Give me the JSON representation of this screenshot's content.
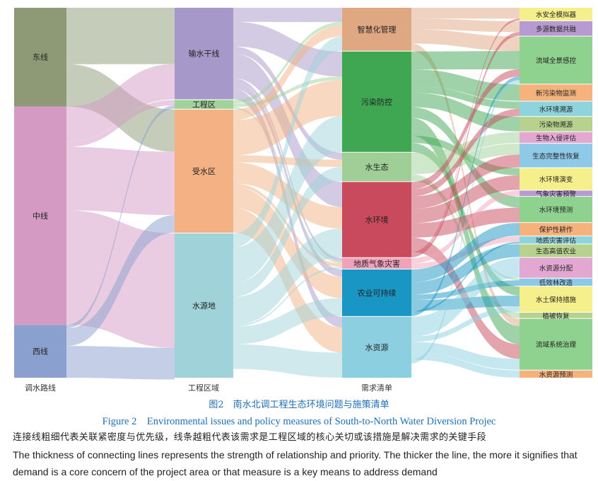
{
  "figure": {
    "caption_zh": "图2　南水北调工程生态环境问题与施策清单",
    "caption_en": "Figure 2　Environmental issues and policy measures of South-to-North Water Diversion Projec",
    "note_zh": "连接线粗细代表关联紧密度与优先级，线条越粗代表该需求是工程区域的核心关切或该措施是解决需求的关键手段",
    "note_en": "The thickness of connecting lines represents the strength of relationship and priority. The thicker the line, the more it signifies that demand is a core concern of the project area or that measure is a key means to address demand"
  },
  "axes": {
    "col1": "调水路线",
    "col2": "工程区域",
    "col3": "需求清单"
  },
  "colors": {
    "east": "#8e9a76",
    "middle": "#d49ac4",
    "west": "#8aa0cf",
    "trunk": "#a698c8",
    "eng": "#9fd39b",
    "recv": "#f4b183",
    "source": "#9fd3d9",
    "smart": "#e0a882",
    "pollution": "#3fa652",
    "ecology": "#9fcf96",
    "waterenv": "#c94a5c",
    "hazard": "#f0a3b8",
    "agri": "#1996c4",
    "resources": "#8ccfe0"
  },
  "nodes": {
    "col1": [
      {
        "id": "east",
        "label": "东线",
        "value": 28
      },
      {
        "id": "middle",
        "label": "中线",
        "value": 62
      },
      {
        "id": "west",
        "label": "西线",
        "value": 15
      }
    ],
    "col2": [
      {
        "id": "trunk",
        "label": "输水干线",
        "value": 26
      },
      {
        "id": "eng",
        "label": "工程区",
        "value": 2.5
      },
      {
        "id": "recv",
        "label": "受水区",
        "value": 35
      },
      {
        "id": "source",
        "label": "水源地",
        "value": 41
      }
    ],
    "col3": [
      {
        "id": "smart",
        "label": "智慧化管理",
        "value": 12
      },
      {
        "id": "pollution",
        "label": "污染防控",
        "value": 28
      },
      {
        "id": "ecology",
        "label": "水生态",
        "value": 8
      },
      {
        "id": "waterenv",
        "label": "水环境",
        "value": 21
      },
      {
        "id": "hazard",
        "label": "地质气象灾害",
        "value": 3
      },
      {
        "id": "agri",
        "label": "农业可持续",
        "value": 13
      },
      {
        "id": "resources",
        "label": "水资源",
        "value": 17
      }
    ],
    "col4": [
      {
        "id": "m1",
        "label": "水安全模拟器",
        "value": 3.5
      },
      {
        "id": "m2",
        "label": "多源数据共融",
        "value": 4
      },
      {
        "id": "m3",
        "label": "流域全景感控",
        "value": 13
      },
      {
        "id": "m4",
        "label": "新污染物监测",
        "value": 4.5
      },
      {
        "id": "m5",
        "label": "水环境溯源",
        "value": 4
      },
      {
        "id": "m6",
        "label": "污染物溯源",
        "value": 4
      },
      {
        "id": "m7",
        "label": "生物入侵评估",
        "value": 3
      },
      {
        "id": "m8",
        "label": "生态完整性恢复",
        "value": 6.5
      },
      {
        "id": "m9",
        "label": "水环境演变",
        "value": 6
      },
      {
        "id": "m10",
        "label": "气象灾害预警",
        "value": 1.5
      },
      {
        "id": "m11",
        "label": "水环境预测",
        "value": 7
      },
      {
        "id": "m12",
        "label": "保护性耕作",
        "value": 3.5
      },
      {
        "id": "m13",
        "label": "地质灾害评估",
        "value": 2
      },
      {
        "id": "m14",
        "label": "生态高值农业",
        "value": 3.5
      },
      {
        "id": "m15",
        "label": "水资源分配",
        "value": 5.5
      },
      {
        "id": "m16",
        "label": "低效林改造",
        "value": 2
      },
      {
        "id": "m17",
        "label": "水土保持措施",
        "value": 7
      },
      {
        "id": "m18",
        "label": "植被恢复",
        "value": 1.5
      },
      {
        "id": "m19",
        "label": "流域系统治理",
        "value": 14
      },
      {
        "id": "m20",
        "label": "水资源预测",
        "value": 2
      }
    ]
  },
  "links": {
    "col1_col2": [
      {
        "s": "east",
        "t": "trunk",
        "v": 16
      },
      {
        "s": "east",
        "t": "recv",
        "v": 12
      },
      {
        "s": "middle",
        "t": "trunk",
        "v": 10
      },
      {
        "s": "middle",
        "t": "eng",
        "v": 1.5
      },
      {
        "s": "middle",
        "t": "recv",
        "v": 18
      },
      {
        "s": "middle",
        "t": "source",
        "v": 32.5
      },
      {
        "s": "west",
        "t": "eng",
        "v": 1
      },
      {
        "s": "west",
        "t": "recv",
        "v": 5
      },
      {
        "s": "west",
        "t": "source",
        "v": 9
      }
    ],
    "col2_col3": [
      {
        "s": "trunk",
        "t": "smart",
        "v": 4
      },
      {
        "s": "trunk",
        "t": "pollution",
        "v": 7
      },
      {
        "s": "trunk",
        "t": "ecology",
        "v": 2
      },
      {
        "s": "trunk",
        "t": "waterenv",
        "v": 7
      },
      {
        "s": "trunk",
        "t": "hazard",
        "v": 1
      },
      {
        "s": "trunk",
        "t": "agri",
        "v": 2
      },
      {
        "s": "trunk",
        "t": "resources",
        "v": 3
      },
      {
        "s": "eng",
        "t": "smart",
        "v": 1
      },
      {
        "s": "eng",
        "t": "pollution",
        "v": 1
      },
      {
        "s": "eng",
        "t": "hazard",
        "v": 0.5
      },
      {
        "s": "recv",
        "t": "smart",
        "v": 3
      },
      {
        "s": "recv",
        "t": "pollution",
        "v": 10
      },
      {
        "s": "recv",
        "t": "ecology",
        "v": 2
      },
      {
        "s": "recv",
        "t": "waterenv",
        "v": 6
      },
      {
        "s": "recv",
        "t": "hazard",
        "v": 1
      },
      {
        "s": "recv",
        "t": "agri",
        "v": 6
      },
      {
        "s": "recv",
        "t": "resources",
        "v": 7
      },
      {
        "s": "source",
        "t": "smart",
        "v": 4
      },
      {
        "s": "source",
        "t": "pollution",
        "v": 10
      },
      {
        "s": "source",
        "t": "ecology",
        "v": 4
      },
      {
        "s": "source",
        "t": "waterenv",
        "v": 8
      },
      {
        "s": "source",
        "t": "hazard",
        "v": 0.5
      },
      {
        "s": "source",
        "t": "agri",
        "v": 5
      },
      {
        "s": "source",
        "t": "resources",
        "v": 7
      }
    ],
    "col3_col4": [
      {
        "s": "smart",
        "t": "m1",
        "v": 3
      },
      {
        "s": "smart",
        "t": "m2",
        "v": 3
      },
      {
        "s": "smart",
        "t": "m3",
        "v": 4
      },
      {
        "s": "smart",
        "t": "m19",
        "v": 2
      },
      {
        "s": "pollution",
        "t": "m3",
        "v": 5
      },
      {
        "s": "pollution",
        "t": "m4",
        "v": 4.5
      },
      {
        "s": "pollution",
        "t": "m5",
        "v": 2
      },
      {
        "s": "pollution",
        "t": "m6",
        "v": 4
      },
      {
        "s": "pollution",
        "t": "m11",
        "v": 3
      },
      {
        "s": "pollution",
        "t": "m19",
        "v": 5
      },
      {
        "s": "pollution",
        "t": "m9",
        "v": 2
      },
      {
        "s": "pollution",
        "t": "m17",
        "v": 2.5
      },
      {
        "s": "ecology",
        "t": "m7",
        "v": 3
      },
      {
        "s": "ecology",
        "t": "m8",
        "v": 3
      },
      {
        "s": "ecology",
        "t": "m18",
        "v": 1.5
      },
      {
        "s": "ecology",
        "t": "m16",
        "v": 0.5
      },
      {
        "s": "waterenv",
        "t": "m3",
        "v": 2
      },
      {
        "s": "waterenv",
        "t": "m5",
        "v": 2
      },
      {
        "s": "waterenv",
        "t": "m8",
        "v": 3.5
      },
      {
        "s": "waterenv",
        "t": "m9",
        "v": 4
      },
      {
        "s": "waterenv",
        "t": "m11",
        "v": 4
      },
      {
        "s": "waterenv",
        "t": "m19",
        "v": 4
      },
      {
        "s": "waterenv",
        "t": "m1",
        "v": 0.5
      },
      {
        "s": "waterenv",
        "t": "m2",
        "v": 1
      },
      {
        "s": "hazard",
        "t": "m10",
        "v": 1.5
      },
      {
        "s": "hazard",
        "t": "m13",
        "v": 1.5
      },
      {
        "s": "agri",
        "t": "m12",
        "v": 3.5
      },
      {
        "s": "agri",
        "t": "m14",
        "v": 3.5
      },
      {
        "s": "agri",
        "t": "m16",
        "v": 1.5
      },
      {
        "s": "agri",
        "t": "m17",
        "v": 3
      },
      {
        "s": "agri",
        "t": "m13",
        "v": 0.5
      },
      {
        "s": "agri",
        "t": "m3",
        "v": 1
      },
      {
        "s": "resources",
        "t": "m15",
        "v": 5.5
      },
      {
        "s": "resources",
        "t": "m17",
        "v": 1.5
      },
      {
        "s": "resources",
        "t": "m19",
        "v": 3
      },
      {
        "s": "resources",
        "t": "m20",
        "v": 2
      },
      {
        "s": "resources",
        "t": "m3",
        "v": 1
      },
      {
        "s": "resources",
        "t": "m19",
        "v": 0
      },
      {
        "s": "resources",
        "t": "m9",
        "v": 0
      }
    ]
  },
  "col4_colors": [
    "#f5ef8c",
    "#b79bd0",
    "#8fd18f",
    "#f6b27c",
    "#8fd3dd",
    "#b6d28e",
    "#e3a8d2",
    "#8fc9e8",
    "#f5ef8c",
    "#b79bd0",
    "#8fd18f",
    "#f6b27c",
    "#8fd3dd",
    "#b6d28e",
    "#e3a8d2",
    "#8fc9e8",
    "#f5ef8c",
    "#b6d28e",
    "#8fd18f",
    "#f6b27c"
  ]
}
